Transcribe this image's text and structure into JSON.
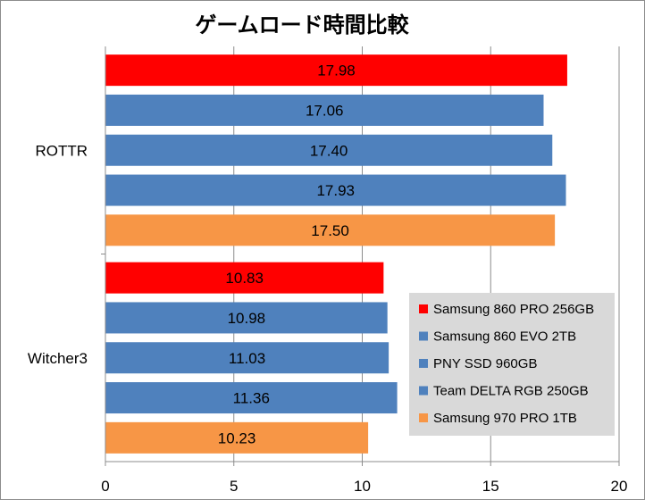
{
  "chart_data": {
    "type": "bar",
    "orientation": "horizontal",
    "title": "ゲームロード時間比較",
    "categories": [
      "ROTTR",
      "Witcher3"
    ],
    "series": [
      {
        "name": "Samsung 860 PRO 256GB",
        "color": "#ff0000",
        "values": [
          17.98,
          10.83
        ]
      },
      {
        "name": "Samsung 860 EVO 2TB",
        "color": "#4f81bd",
        "values": [
          17.06,
          10.98
        ]
      },
      {
        "name": "PNY SSD 960GB",
        "color": "#4f81bd",
        "values": [
          17.4,
          11.03
        ]
      },
      {
        "name": "Team DELTA RGB 250GB",
        "color": "#4f81bd",
        "values": [
          17.93,
          11.36
        ]
      },
      {
        "name": "Samsung 970 PRO 1TB",
        "color": "#f79646",
        "values": [
          17.5,
          10.23
        ]
      }
    ],
    "value_labels": [
      [
        "17.98",
        "10.83"
      ],
      [
        "17.06",
        "10.98"
      ],
      [
        "17.40",
        "11.03"
      ],
      [
        "17.93",
        "11.36"
      ],
      [
        "17.50",
        "10.23"
      ]
    ],
    "xlim": [
      0,
      20
    ],
    "xticks": [
      "0",
      "5",
      "10",
      "15",
      "20"
    ],
    "grid": true,
    "legend_position": "bottom-right",
    "legend_background": "#d9d9d9"
  }
}
